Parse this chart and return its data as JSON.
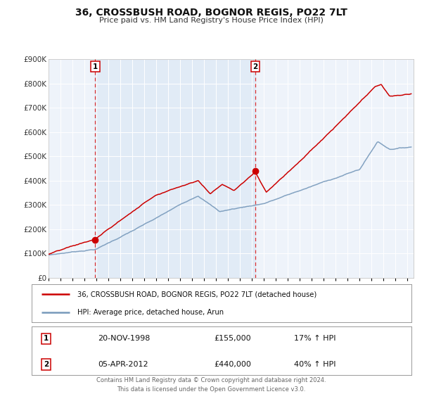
{
  "title": "36, CROSSBUSH ROAD, BOGNOR REGIS, PO22 7LT",
  "subtitle": "Price paid vs. HM Land Registry's House Price Index (HPI)",
  "ylim": [
    0,
    900000
  ],
  "xlim_start": 1995.0,
  "xlim_end": 2025.5,
  "plot_bg": "#eef3fa",
  "grid_color": "#ffffff",
  "red_line_color": "#cc0000",
  "blue_line_color": "#7799bb",
  "dashed_line_color": "#dd3333",
  "marker1_x": 1998.9,
  "marker1_y": 155000,
  "marker2_x": 2012.27,
  "marker2_y": 440000,
  "vline1_x": 1998.9,
  "vline2_x": 2012.27,
  "legend_line1": "36, CROSSBUSH ROAD, BOGNOR REGIS, PO22 7LT (detached house)",
  "legend_line2": "HPI: Average price, detached house, Arun",
  "table_rows": [
    {
      "num": "1",
      "date": "20-NOV-1998",
      "price": "£155,000",
      "hpi": "17% ↑ HPI"
    },
    {
      "num": "2",
      "date": "05-APR-2012",
      "price": "£440,000",
      "hpi": "40% ↑ HPI"
    }
  ],
  "footer": "Contains HM Land Registry data © Crown copyright and database right 2024.\nThis data is licensed under the Open Government Licence v3.0.",
  "ytick_labels": [
    "£0",
    "£100K",
    "£200K",
    "£300K",
    "£400K",
    "£500K",
    "£600K",
    "£700K",
    "£800K",
    "£900K"
  ],
  "ytick_vals": [
    0,
    100000,
    200000,
    300000,
    400000,
    500000,
    600000,
    700000,
    800000,
    900000
  ]
}
